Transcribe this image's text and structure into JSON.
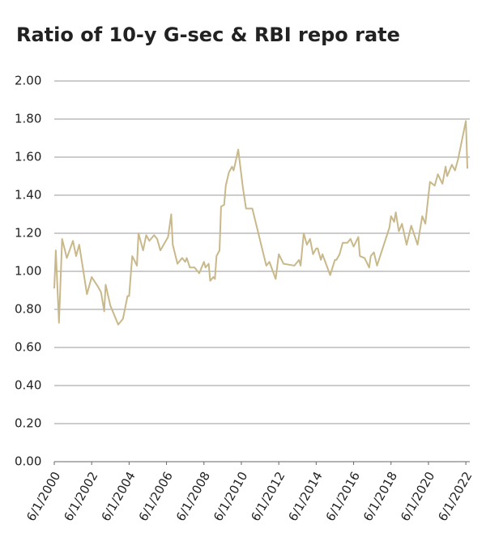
{
  "chart_data": {
    "type": "line",
    "title": "Ratio of 10-y G-sec & RBI repo rate",
    "x": [
      "2000-06-01",
      "2000-07-01",
      "2000-09-01",
      "2000-11-01",
      "2001-02-01",
      "2001-06-01",
      "2001-08-01",
      "2001-10-01",
      "2002-03-01",
      "2002-06-01",
      "2002-10-01",
      "2002-12-01",
      "2003-02-01",
      "2003-03-01",
      "2003-06-01",
      "2003-11-01",
      "2004-02-01",
      "2004-05-01",
      "2004-06-01",
      "2004-08-01",
      "2004-11-01",
      "2004-12-01",
      "2005-03-01",
      "2005-05-01",
      "2005-07-01",
      "2005-10-01",
      "2005-12-01",
      "2006-02-01",
      "2006-07-01",
      "2006-09-01",
      "2006-10-01",
      "2007-01-01",
      "2007-04-01",
      "2007-06-01",
      "2007-07-01",
      "2007-09-01",
      "2007-12-01",
      "2008-03-01",
      "2008-06-01",
      "2008-07-01",
      "2008-09-01",
      "2008-10-01",
      "2008-12-01",
      "2009-01-01",
      "2009-02-01",
      "2009-04-01",
      "2009-05-01",
      "2009-07-01",
      "2009-08-01",
      "2009-10-01",
      "2009-12-01",
      "2010-01-01",
      "2010-03-01",
      "2010-04-01",
      "2010-07-01",
      "2010-09-01",
      "2011-01-01",
      "2011-10-01",
      "2011-12-01",
      "2012-04-01",
      "2012-06-01",
      "2012-09-01",
      "2013-04-01",
      "2013-07-01",
      "2013-08-01",
      "2013-10-01",
      "2013-12-01",
      "2014-02-01",
      "2014-04-01",
      "2014-06-01",
      "2014-07-01",
      "2014-09-01",
      "2014-10-01",
      "2015-03-01",
      "2015-06-01",
      "2015-07-01",
      "2015-09-01",
      "2015-11-01",
      "2016-02-01",
      "2016-04-01",
      "2016-06-01",
      "2016-09-01",
      "2016-10-01",
      "2017-01-01",
      "2017-04-01",
      "2017-05-01",
      "2017-07-01",
      "2017-09-01",
      "2018-05-01",
      "2018-06-01",
      "2018-08-01",
      "2018-09-01",
      "2018-11-01",
      "2019-01-01",
      "2019-04-01",
      "2019-07-01",
      "2019-11-01",
      "2020-01-01",
      "2020-02-01",
      "2020-04-01",
      "2020-06-01",
      "2020-07-01",
      "2020-10-01",
      "2020-12-01",
      "2021-03-01",
      "2021-05-01",
      "2021-06-01",
      "2021-09-01",
      "2021-11-01",
      "2022-01-01",
      "2022-06-01",
      "2022-07-01"
    ],
    "series": [
      {
        "color": "#c8b88a",
        "values": [
          0.91,
          1.11,
          0.73,
          1.17,
          1.07,
          1.16,
          1.08,
          1.14,
          0.88,
          0.97,
          0.92,
          0.89,
          0.79,
          0.93,
          0.82,
          0.72,
          0.75,
          0.87,
          0.87,
          1.08,
          1.03,
          1.2,
          1.11,
          1.19,
          1.16,
          1.19,
          1.17,
          1.11,
          1.18,
          1.3,
          1.14,
          1.04,
          1.07,
          1.05,
          1.07,
          1.02,
          1.02,
          0.99,
          1.05,
          1.02,
          1.04,
          0.95,
          0.97,
          0.96,
          1.08,
          1.11,
          1.34,
          1.35,
          1.45,
          1.52,
          1.55,
          1.53,
          1.6,
          1.64,
          1.44,
          1.33,
          1.33,
          1.03,
          1.05,
          0.96,
          1.09,
          1.04,
          1.03,
          1.06,
          1.03,
          1.2,
          1.14,
          1.17,
          1.09,
          1.12,
          1.12,
          1.06,
          1.09,
          0.98,
          1.06,
          1.06,
          1.09,
          1.15,
          1.15,
          1.17,
          1.13,
          1.18,
          1.08,
          1.07,
          1.02,
          1.08,
          1.1,
          1.03,
          1.23,
          1.29,
          1.26,
          1.31,
          1.21,
          1.25,
          1.14,
          1.24,
          1.14,
          1.24,
          1.29,
          1.25,
          1.4,
          1.47,
          1.45,
          1.51,
          1.46,
          1.55,
          1.5,
          1.56,
          1.53,
          1.59,
          1.79,
          1.54
        ]
      }
    ],
    "xlim": [
      "2000-06-01",
      "2022-08-01"
    ],
    "xticks": [
      {
        "value": "2000-06-01",
        "label": "6/1/2000"
      },
      {
        "value": "2002-06-01",
        "label": "6/1/2002"
      },
      {
        "value": "2004-06-01",
        "label": "6/1/2004"
      },
      {
        "value": "2006-06-01",
        "label": "6/1/2006"
      },
      {
        "value": "2008-06-01",
        "label": "6/1/2008"
      },
      {
        "value": "2010-06-01",
        "label": "6/1/2010"
      },
      {
        "value": "2012-06-01",
        "label": "6/1/2012"
      },
      {
        "value": "2014-06-01",
        "label": "6/1/2014"
      },
      {
        "value": "2016-06-01",
        "label": "6/1/2016"
      },
      {
        "value": "2018-06-01",
        "label": "6/1/2018"
      },
      {
        "value": "2020-06-01",
        "label": "6/1/2020"
      },
      {
        "value": "2022-06-01",
        "label": "6/1/2022"
      }
    ],
    "ylim": [
      0,
      2
    ],
    "yticks": [
      {
        "value": 0,
        "label": "0.00"
      },
      {
        "value": 0.2,
        "label": "0.20"
      },
      {
        "value": 0.4,
        "label": "0.40"
      },
      {
        "value": 0.6,
        "label": "0.60"
      },
      {
        "value": 0.8,
        "label": "0.80"
      },
      {
        "value": 1,
        "label": "1.00"
      },
      {
        "value": 1.2,
        "label": "1.20"
      },
      {
        "value": 1.4,
        "label": "1.40"
      },
      {
        "value": 1.6,
        "label": "1.60"
      },
      {
        "value": 1.8,
        "label": "1.80"
      },
      {
        "value": 2,
        "label": "2.00"
      }
    ],
    "grid": true
  }
}
